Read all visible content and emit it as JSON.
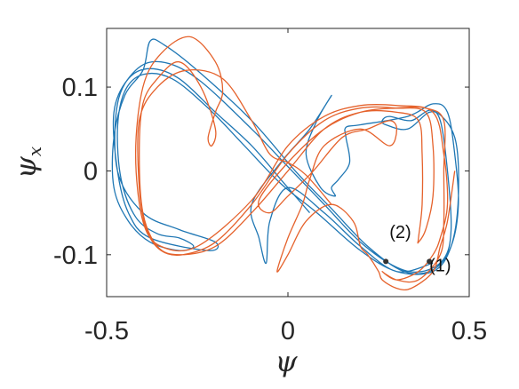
{
  "chart_data": {
    "type": "line",
    "xlabel_symbol": "ψ",
    "ylabel_symbol": "ψ",
    "ylabel_subscript": "x",
    "xlim": [
      -0.5,
      0.5
    ],
    "ylim": [
      -0.15,
      0.17
    ],
    "xticks": [
      -0.5,
      0,
      0.5
    ],
    "xtick_labels": [
      "-0.5",
      "0",
      "0.5"
    ],
    "yticks": [
      -0.1,
      0,
      0.1
    ],
    "ytick_labels": [
      "-0.1",
      "0",
      "0.1"
    ],
    "grid": false,
    "legend": "none",
    "series": [
      {
        "color": "#1f77b4",
        "points": [
          [
            0.06,
            -0.05
          ],
          [
            0.02,
            -0.03
          ],
          [
            -0.02,
            -0.01
          ],
          [
            -0.1,
            0.03
          ],
          [
            -0.2,
            0.07
          ],
          [
            -0.3,
            0.11
          ],
          [
            -0.38,
            0.122
          ],
          [
            -0.44,
            0.11
          ],
          [
            -0.48,
            0.07
          ],
          [
            -0.47,
            0.0
          ],
          [
            -0.44,
            -0.05
          ],
          [
            -0.38,
            -0.08
          ],
          [
            -0.22,
            -0.095
          ],
          [
            -0.2,
            -0.085
          ],
          [
            -0.3,
            -0.07
          ],
          [
            -0.4,
            -0.05
          ],
          [
            -0.47,
            0.0
          ],
          [
            -0.47,
            0.08
          ],
          [
            -0.42,
            0.12
          ],
          [
            -0.35,
            0.13
          ],
          [
            -0.25,
            0.11
          ],
          [
            -0.1,
            0.05
          ],
          [
            0.0,
            0.005
          ],
          [
            0.1,
            -0.04
          ],
          [
            0.2,
            -0.085
          ],
          [
            0.3,
            -0.115
          ],
          [
            0.37,
            -0.12
          ],
          [
            0.43,
            -0.105
          ],
          [
            0.45,
            -0.07
          ],
          [
            0.44,
            0.0
          ],
          [
            0.42,
            0.06
          ],
          [
            0.39,
            0.07
          ],
          [
            0.33,
            0.05
          ],
          [
            0.27,
            0.055
          ],
          [
            0.26,
            0.06
          ],
          [
            0.28,
            0.065
          ],
          [
            0.34,
            0.06
          ],
          [
            0.4,
            0.072
          ],
          [
            0.46,
            0.04
          ],
          [
            0.47,
            -0.03
          ],
          [
            0.45,
            -0.09
          ],
          [
            0.4,
            -0.12
          ],
          [
            0.3,
            -0.12
          ],
          [
            0.2,
            -0.095
          ],
          [
            0.08,
            -0.05
          ],
          [
            -0.02,
            -0.015
          ],
          [
            -0.12,
            0.03
          ],
          [
            -0.22,
            0.075
          ],
          [
            -0.32,
            0.11
          ],
          [
            -0.4,
            0.115
          ],
          [
            -0.45,
            0.095
          ],
          [
            -0.47,
            0.05
          ],
          [
            -0.46,
            -0.01
          ],
          [
            -0.42,
            -0.055
          ],
          [
            -0.36,
            -0.075
          ],
          [
            -0.3,
            -0.08
          ],
          [
            -0.26,
            -0.09
          ],
          [
            -0.3,
            -0.095
          ],
          [
            -0.38,
            -0.085
          ],
          [
            -0.44,
            -0.06
          ],
          [
            -0.48,
            -0.02
          ],
          [
            -0.48,
            0.04
          ],
          [
            -0.45,
            0.09
          ],
          [
            -0.4,
            0.12
          ],
          [
            -0.38,
            0.155
          ],
          [
            -0.34,
            0.15
          ],
          [
            -0.25,
            0.12
          ],
          [
            -0.1,
            0.06
          ],
          [
            0.02,
            0.0
          ],
          [
            0.12,
            -0.045
          ],
          [
            0.22,
            -0.09
          ],
          [
            0.32,
            -0.12
          ],
          [
            0.4,
            -0.118
          ],
          [
            0.45,
            -0.09
          ],
          [
            0.47,
            -0.04
          ],
          [
            0.46,
            0.02
          ],
          [
            0.44,
            0.07
          ],
          [
            0.4,
            0.08
          ],
          [
            0.33,
            0.065
          ],
          [
            0.2,
            0.055
          ],
          [
            0.16,
            0.052
          ],
          [
            0.16,
            0.04
          ],
          [
            0.17,
            0.01
          ],
          [
            0.14,
            -0.01
          ],
          [
            0.12,
            -0.02
          ],
          [
            0.13,
            -0.03
          ],
          [
            0.09,
            -0.02
          ],
          [
            0.05,
            0.02
          ],
          [
            0.08,
            0.06
          ],
          [
            0.12,
            0.09
          ],
          [
            0.06,
            0.05
          ],
          [
            -0.02,
            0.01
          ],
          [
            -0.1,
            -0.04
          ],
          [
            -0.08,
            -0.08
          ],
          [
            -0.06,
            -0.11
          ],
          [
            -0.05,
            -0.06
          ],
          [
            0.0,
            -0.02
          ],
          [
            0.1,
            -0.05
          ],
          [
            0.2,
            -0.09
          ],
          [
            0.3,
            -0.12
          ],
          [
            0.4,
            -0.11
          ]
        ]
      },
      {
        "color": "#e5622c",
        "points": [
          [
            0.12,
            -0.04
          ],
          [
            0.05,
            -0.005
          ],
          [
            0.0,
            0.01
          ],
          [
            -0.05,
            0.02
          ],
          [
            -0.1,
            0.06
          ],
          [
            -0.18,
            0.11
          ],
          [
            -0.28,
            0.12
          ],
          [
            -0.36,
            0.1
          ],
          [
            -0.41,
            0.06
          ],
          [
            -0.41,
            -0.02
          ],
          [
            -0.39,
            -0.07
          ],
          [
            -0.35,
            -0.095
          ],
          [
            -0.29,
            -0.1
          ],
          [
            -0.2,
            -0.085
          ],
          [
            -0.1,
            -0.04
          ],
          [
            0.0,
            0.02
          ],
          [
            0.1,
            0.06
          ],
          [
            0.2,
            0.075
          ],
          [
            0.3,
            0.075
          ],
          [
            0.38,
            0.07
          ],
          [
            0.4,
            0.03
          ],
          [
            0.4,
            -0.03
          ],
          [
            0.38,
            -0.07
          ],
          [
            0.36,
            -0.085
          ],
          [
            0.36,
            -0.08
          ],
          [
            0.37,
            -0.04
          ],
          [
            0.37,
            0.02
          ],
          [
            0.36,
            0.06
          ],
          [
            0.3,
            0.07
          ],
          [
            0.2,
            0.07
          ],
          [
            0.1,
            0.05
          ],
          [
            0.0,
            0.0
          ],
          [
            -0.1,
            -0.05
          ],
          [
            -0.2,
            -0.09
          ],
          [
            -0.3,
            -0.1
          ],
          [
            -0.36,
            -0.09
          ],
          [
            -0.4,
            -0.05
          ],
          [
            -0.41,
            0.02
          ],
          [
            -0.4,
            0.08
          ],
          [
            -0.36,
            0.11
          ],
          [
            -0.3,
            0.13
          ],
          [
            -0.24,
            0.1
          ],
          [
            -0.2,
            0.05
          ],
          [
            -0.21,
            0.03
          ],
          [
            -0.22,
            0.04
          ],
          [
            -0.2,
            0.07
          ],
          [
            -0.18,
            0.095
          ],
          [
            -0.2,
            0.13
          ],
          [
            -0.27,
            0.16
          ],
          [
            -0.35,
            0.14
          ],
          [
            -0.4,
            0.1
          ],
          [
            -0.42,
            0.02
          ],
          [
            -0.4,
            -0.06
          ],
          [
            -0.35,
            -0.09
          ],
          [
            -0.25,
            -0.09
          ],
          [
            -0.1,
            -0.035
          ],
          [
            0.0,
            0.03
          ],
          [
            0.1,
            0.065
          ],
          [
            0.2,
            0.078
          ],
          [
            0.3,
            0.078
          ],
          [
            0.4,
            0.07
          ],
          [
            0.43,
            0.02
          ],
          [
            0.44,
            -0.04
          ],
          [
            0.42,
            -0.08
          ],
          [
            0.4,
            -0.1
          ],
          [
            0.36,
            -0.12
          ],
          [
            0.3,
            -0.13
          ],
          [
            0.26,
            -0.12
          ],
          [
            0.3,
            -0.13
          ],
          [
            0.36,
            -0.13
          ],
          [
            0.42,
            -0.1
          ],
          [
            0.43,
            -0.06
          ],
          [
            0.43,
            0.0
          ],
          [
            0.43,
            0.06
          ],
          [
            0.38,
            0.075
          ],
          [
            0.3,
            0.075
          ],
          [
            0.2,
            0.07
          ],
          [
            0.1,
            0.05
          ],
          [
            0.0,
            0.01
          ],
          [
            -0.08,
            -0.035
          ],
          [
            -0.05,
            -0.05
          ],
          [
            0.0,
            -0.03
          ],
          [
            0.07,
            0.0
          ],
          [
            0.15,
            0.04
          ],
          [
            0.22,
            0.05
          ],
          [
            0.28,
            0.06
          ],
          [
            0.3,
            0.05
          ],
          [
            0.28,
            0.03
          ],
          [
            0.2,
            0.05
          ],
          [
            0.1,
            0.03
          ],
          [
            0.06,
            -0.01
          ],
          [
            0.04,
            -0.04
          ],
          [
            0.0,
            -0.08
          ],
          [
            -0.03,
            -0.12
          ],
          [
            0.0,
            -0.1
          ],
          [
            0.05,
            -0.06
          ],
          [
            0.12,
            -0.04
          ],
          [
            0.18,
            -0.06
          ],
          [
            0.2,
            -0.09
          ],
          [
            0.22,
            -0.1
          ],
          [
            0.25,
            -0.12
          ],
          [
            0.26,
            -0.13
          ],
          [
            0.3,
            -0.14
          ],
          [
            0.34,
            -0.14
          ],
          [
            0.4,
            -0.12
          ],
          [
            0.42,
            -0.09
          ],
          [
            0.44,
            -0.06
          ],
          [
            0.46,
            0.0
          ]
        ]
      }
    ],
    "markers": [
      {
        "x": 0.27,
        "y": -0.108
      },
      {
        "x": 0.39,
        "y": -0.108
      }
    ],
    "annotations": [
      {
        "text": "(2)",
        "x": 0.31,
        "y": -0.08
      },
      {
        "text": "(1)",
        "x": 0.42,
        "y": -0.12
      }
    ]
  }
}
